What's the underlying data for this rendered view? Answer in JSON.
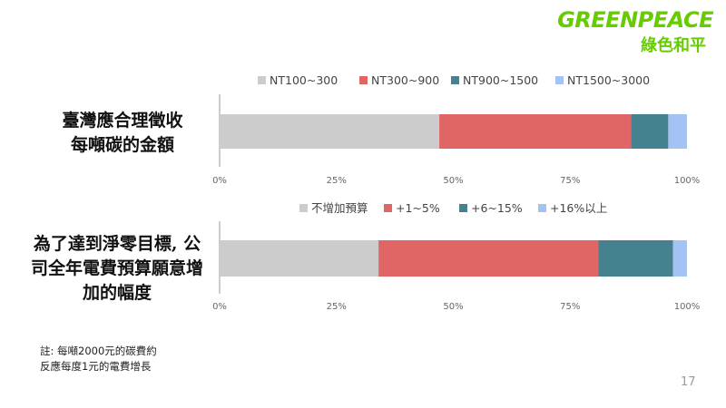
{
  "logo": {
    "wordmark": "GREENPEACE",
    "chinese": "綠色和平"
  },
  "row_labels": [
    {
      "line1": "臺灣應合理徵收",
      "line2": "每噸碳的金額"
    },
    {
      "line1": "為了達到淨零目標, 公",
      "line2": "司全年電費預算願意增",
      "line3": "加的幅度"
    }
  ],
  "note": {
    "line1": "註: 每噸2000元的碳費約",
    "line2": "反應每度1元的電費增長"
  },
  "page_number": "17",
  "chart_data": [
    {
      "type": "bar",
      "orientation": "horizontal",
      "stacked": true,
      "categories": [
        "臺灣應合理徵收每噸碳的金額"
      ],
      "series": [
        {
          "name": "NT100~300",
          "values": [
            47
          ],
          "color": "#cccccc"
        },
        {
          "name": "NT300~900",
          "values": [
            41
          ],
          "color": "#e06666"
        },
        {
          "name": "NT900~1500",
          "values": [
            8
          ],
          "color": "#45818e"
        },
        {
          "name": "NT1500~3000",
          "values": [
            4
          ],
          "color": "#a4c2f4"
        }
      ],
      "xlim": [
        0,
        100
      ],
      "xticks": [
        "0%",
        "25%",
        "50%",
        "75%",
        "100%"
      ],
      "legend": "top",
      "grid": false
    },
    {
      "type": "bar",
      "orientation": "horizontal",
      "stacked": true,
      "categories": [
        "為了達到淨零目標, 公司全年電費預算願意增加的幅度"
      ],
      "series": [
        {
          "name": "不增加預算",
          "values": [
            34
          ],
          "color": "#cccccc"
        },
        {
          "name": "+1~5%",
          "values": [
            47
          ],
          "color": "#e06666"
        },
        {
          "name": "+6~15%",
          "values": [
            16
          ],
          "color": "#45818e"
        },
        {
          "name": "+16%以上",
          "values": [
            3
          ],
          "color": "#a4c2f4"
        }
      ],
      "xlim": [
        0,
        100
      ],
      "xticks": [
        "0%",
        "25%",
        "50%",
        "75%",
        "100%"
      ],
      "legend": "top",
      "grid": false
    }
  ]
}
